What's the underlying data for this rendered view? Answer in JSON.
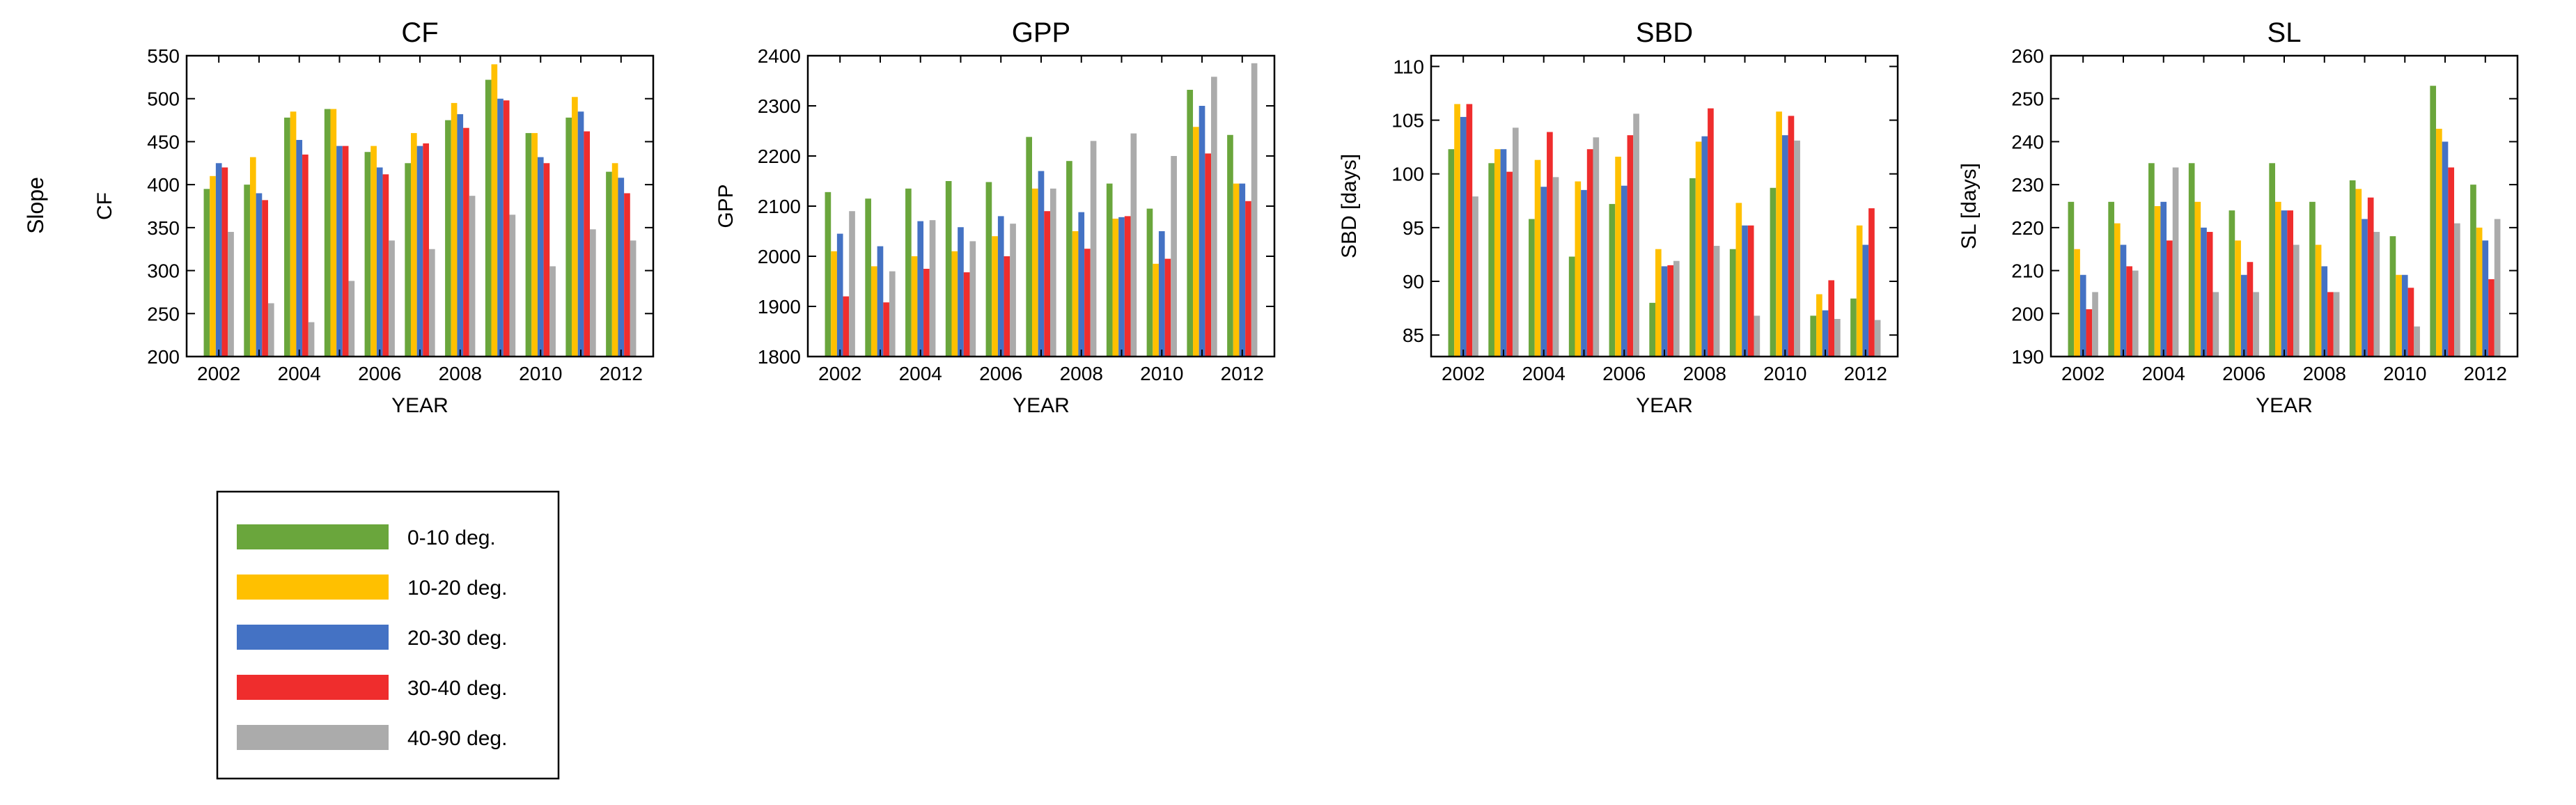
{
  "figure": {
    "row_label": "Slope",
    "colors": {
      "0-10 deg.": "#6aa63c",
      "10-20 deg.": "#ffc000",
      "20-30 deg.": "#4472c4",
      "30-40 deg.": "#ef2d2d",
      "40-90 deg.": "#ababab"
    }
  },
  "legend": {
    "entries": [
      "0-10 deg.",
      "10-20 deg.",
      "20-30 deg.",
      "30-40 deg.",
      "40-90 deg."
    ]
  },
  "chart_data": [
    {
      "type": "bar",
      "title": "CF",
      "xlabel": "YEAR",
      "ylabel": "CF",
      "ylim": [
        200,
        550
      ],
      "yticks": [
        200,
        250,
        300,
        350,
        400,
        450,
        500,
        550
      ],
      "xticks": [
        2002,
        2004,
        2006,
        2008,
        2010,
        2012
      ],
      "categories": [
        2002,
        2003,
        2004,
        2005,
        2006,
        2007,
        2008,
        2009,
        2010,
        2011,
        2012
      ],
      "series": [
        {
          "name": "0-10 deg.",
          "values": [
            395,
            400,
            478,
            488,
            438,
            425,
            475,
            522,
            460,
            478,
            415
          ]
        },
        {
          "name": "10-20 deg.",
          "values": [
            410,
            432,
            485,
            488,
            445,
            460,
            495,
            540,
            460,
            502,
            425
          ]
        },
        {
          "name": "20-30 deg.",
          "values": [
            425,
            390,
            452,
            445,
            420,
            445,
            482,
            500,
            432,
            485,
            408
          ]
        },
        {
          "name": "30-40 deg.",
          "values": [
            420,
            382,
            435,
            445,
            412,
            448,
            466,
            498,
            425,
            462,
            390
          ]
        },
        {
          "name": "40-90 deg.",
          "values": [
            345,
            262,
            240,
            288,
            335,
            325,
            387,
            365,
            305,
            348,
            335
          ]
        }
      ]
    },
    {
      "type": "bar",
      "title": "GPP",
      "xlabel": "YEAR",
      "ylabel": "GPP",
      "ylim": [
        1800,
        2400
      ],
      "yticks": [
        1800,
        1900,
        2000,
        2100,
        2200,
        2300,
        2400
      ],
      "xticks": [
        2002,
        2004,
        2006,
        2008,
        2010,
        2012
      ],
      "categories": [
        2002,
        2003,
        2004,
        2005,
        2006,
        2007,
        2008,
        2009,
        2010,
        2011,
        2012
      ],
      "series": [
        {
          "name": "0-10 deg.",
          "values": [
            2128,
            2115,
            2135,
            2150,
            2148,
            2238,
            2190,
            2145,
            2095,
            2332,
            2242
          ]
        },
        {
          "name": "10-20 deg.",
          "values": [
            2010,
            1980,
            2000,
            2010,
            2040,
            2135,
            2050,
            2075,
            1985,
            2258,
            2145
          ]
        },
        {
          "name": "20-30 deg.",
          "values": [
            2045,
            2020,
            2070,
            2058,
            2080,
            2170,
            2088,
            2078,
            2050,
            2300,
            2145
          ]
        },
        {
          "name": "30-40 deg.",
          "values": [
            1920,
            1908,
            1975,
            1968,
            2000,
            2090,
            2015,
            2080,
            1995,
            2205,
            2110
          ]
        },
        {
          "name": "40-90 deg.",
          "values": [
            2090,
            1970,
            2072,
            2030,
            2065,
            2135,
            2230,
            2245,
            2200,
            2358,
            2385
          ]
        }
      ]
    },
    {
      "type": "bar",
      "title": "SBD",
      "xlabel": "YEAR",
      "ylabel": "SBD [days]",
      "ylim": [
        83,
        111
      ],
      "yticks": [
        85,
        90,
        95,
        100,
        105,
        110
      ],
      "xticks": [
        2002,
        2004,
        2006,
        2008,
        2010,
        2012
      ],
      "categories": [
        2002,
        2003,
        2004,
        2005,
        2006,
        2007,
        2008,
        2009,
        2010,
        2011,
        2012
      ],
      "series": [
        {
          "name": "0-10 deg.",
          "values": [
            102.3,
            101.0,
            95.8,
            92.3,
            97.2,
            88.0,
            99.6,
            93.0,
            98.7,
            86.8,
            88.4
          ]
        },
        {
          "name": "10-20 deg.",
          "values": [
            106.5,
            102.3,
            101.3,
            99.3,
            101.6,
            93.0,
            103.0,
            97.3,
            105.8,
            88.8,
            95.2
          ]
        },
        {
          "name": "20-30 deg.",
          "values": [
            105.3,
            102.3,
            98.8,
            98.5,
            98.9,
            91.4,
            103.5,
            95.2,
            103.6,
            87.3,
            93.4
          ]
        },
        {
          "name": "30-40 deg.",
          "values": [
            106.5,
            100.2,
            103.9,
            102.3,
            103.6,
            91.5,
            106.1,
            95.2,
            105.4,
            90.1,
            96.8
          ]
        },
        {
          "name": "40-90 deg.",
          "values": [
            97.9,
            104.3,
            99.7,
            103.4,
            105.6,
            91.9,
            93.3,
            86.8,
            103.1,
            86.5,
            86.4
          ]
        }
      ]
    },
    {
      "type": "bar",
      "title": "SL",
      "xlabel": "YEAR",
      "ylabel": "SL [days]",
      "ylim": [
        190,
        260
      ],
      "yticks": [
        190,
        200,
        210,
        220,
        230,
        240,
        250,
        260
      ],
      "xticks": [
        2002,
        2004,
        2006,
        2008,
        2010,
        2012
      ],
      "categories": [
        2002,
        2003,
        2004,
        2005,
        2006,
        2007,
        2008,
        2009,
        2010,
        2011,
        2012
      ],
      "series": [
        {
          "name": "0-10 deg.",
          "values": [
            226,
            226,
            235,
            235,
            224,
            235,
            226,
            231,
            218,
            253,
            230
          ]
        },
        {
          "name": "10-20 deg.",
          "values": [
            215,
            221,
            225,
            226,
            217,
            226,
            216,
            229,
            209,
            243,
            220
          ]
        },
        {
          "name": "20-30 deg.",
          "values": [
            209,
            216,
            226,
            220,
            209,
            224,
            211,
            222,
            209,
            240,
            217
          ]
        },
        {
          "name": "30-40 deg.",
          "values": [
            201,
            211,
            217,
            219,
            212,
            224,
            205,
            227,
            206,
            234,
            208
          ]
        },
        {
          "name": "40-90 deg.",
          "values": [
            205,
            210,
            234,
            205,
            205,
            216,
            205,
            219,
            197,
            221,
            222
          ]
        }
      ]
    }
  ]
}
